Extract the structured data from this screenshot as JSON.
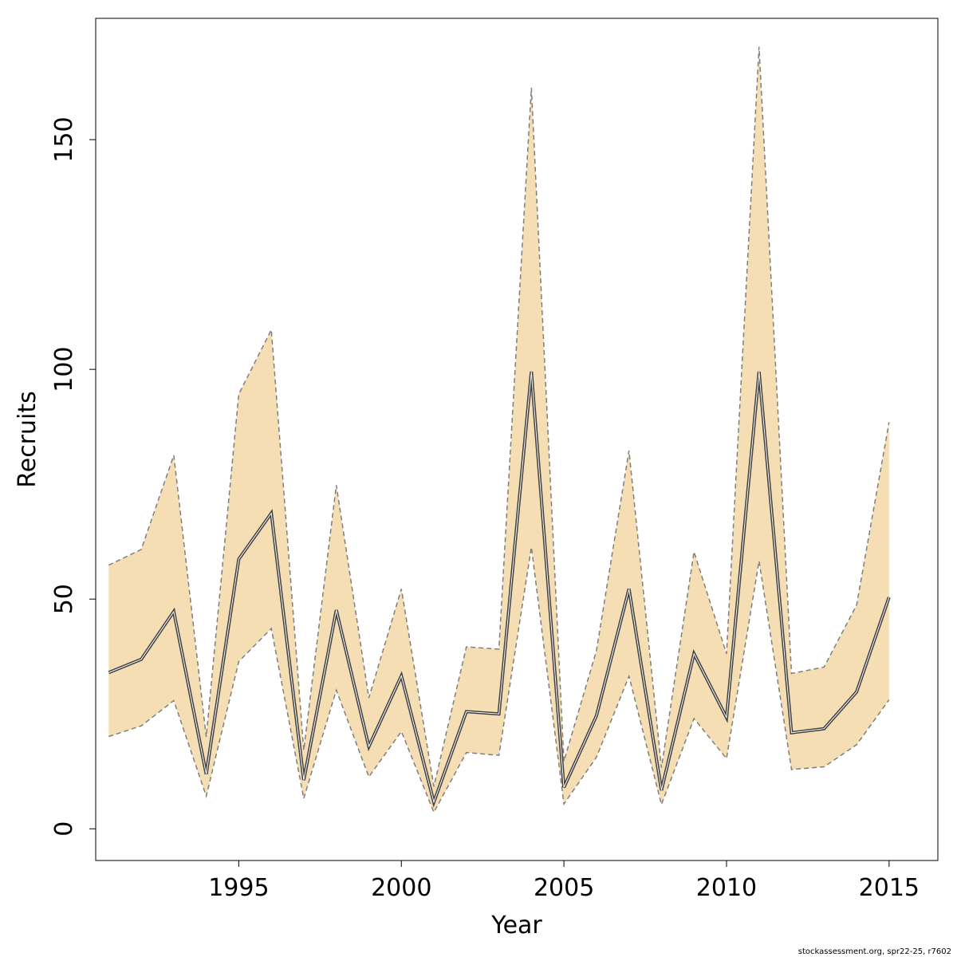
{
  "chart_data": {
    "type": "line",
    "xlabel": "Year",
    "ylabel": "Recruits",
    "xlim": [
      1990.6,
      2016.5
    ],
    "ylim": [
      -6.9,
      176.4
    ],
    "x_ticks": [
      1995,
      2000,
      2005,
      2010,
      2015
    ],
    "y_ticks": [
      0,
      50,
      100,
      150
    ],
    "grid": false,
    "x": [
      1991,
      1992,
      1993,
      1994,
      1995,
      1996,
      1997,
      1998,
      1999,
      2000,
      2001,
      2002,
      2003,
      2004,
      2005,
      2006,
      2007,
      2008,
      2009,
      2010,
      2011,
      2012,
      2013,
      2014,
      2015
    ],
    "series": [
      {
        "values": [
          34.0,
          36.9,
          47.3,
          11.9,
          58.7,
          68.7,
          10.6,
          47.6,
          17.9,
          33.3,
          5.8,
          25.5,
          25.0,
          99.5,
          9.0,
          24.6,
          52.2,
          8.4,
          38.1,
          24.2,
          99.5,
          20.9,
          21.8,
          29.8,
          50.4
        ],
        "lower": [
          20.1,
          22.4,
          27.9,
          7.1,
          36.4,
          43.6,
          6.6,
          30.2,
          11.3,
          21.2,
          3.6,
          16.6,
          16.0,
          61.3,
          5.4,
          15.6,
          33.2,
          5.3,
          24.0,
          15.3,
          58.3,
          12.9,
          13.5,
          18.3,
          28.1
        ],
        "upper": [
          57.4,
          60.8,
          81.3,
          20.0,
          94.6,
          108.6,
          17.1,
          74.8,
          28.5,
          52.2,
          9.2,
          39.6,
          39.1,
          161.3,
          14.7,
          38.8,
          82.3,
          13.3,
          60.3,
          38.1,
          170.2,
          33.8,
          35.2,
          48.7,
          88.5
        ],
        "color": "#404040"
      }
    ],
    "band_fill": "#f5deb3",
    "band_edge": "#7f7f7f",
    "footer": "stockassessment.org, spr22-25, r7602"
  }
}
